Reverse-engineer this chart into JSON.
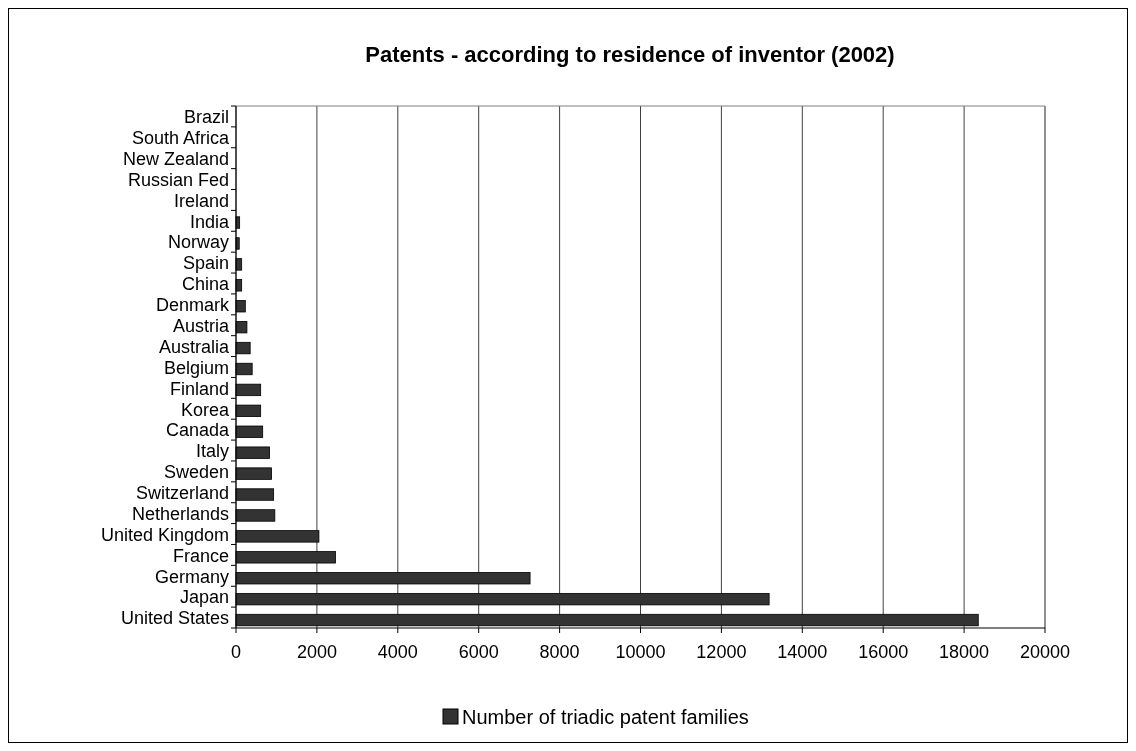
{
  "chart_data": {
    "type": "bar",
    "orientation": "horizontal",
    "title": "Patents - according to residence of inventor (2002)",
    "categories": [
      "Brazil",
      "South Africa",
      "New Zealand",
      "Russian Fed",
      "Ireland",
      "India",
      "Norway",
      "Spain",
      "China",
      "Denmark",
      "Austria",
      "Australia",
      "Belgium",
      "Finland",
      "Korea",
      "Canada",
      "Italy",
      "Sweden",
      "Switzerland",
      "Netherlands",
      "United Kingdom",
      "France",
      "Germany",
      "Japan",
      "United States"
    ],
    "series": [
      {
        "name": "Number of triadic patent families",
        "color": "#333333",
        "values": [
          0,
          0,
          0,
          0,
          0,
          90,
          80,
          140,
          140,
          230,
          270,
          350,
          400,
          610,
          610,
          660,
          830,
          880,
          930,
          960,
          2050,
          2460,
          7270,
          13180,
          18350
        ]
      }
    ],
    "xlim": [
      0,
      20000
    ],
    "xticks": [
      0,
      2000,
      4000,
      6000,
      8000,
      10000,
      12000,
      14000,
      16000,
      18000,
      20000
    ],
    "grid": "x",
    "legend": "bottom"
  }
}
